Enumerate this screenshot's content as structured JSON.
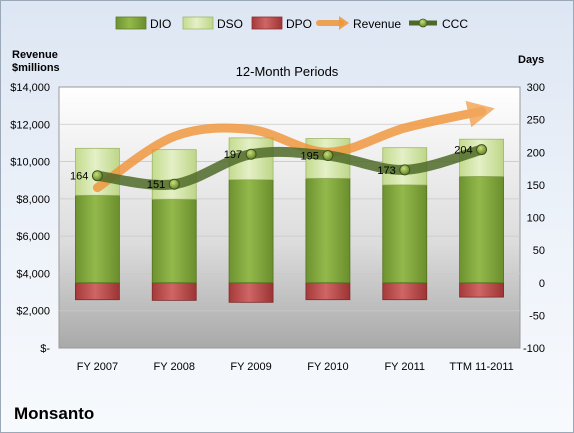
{
  "company": "Monsanto",
  "chart_data": {
    "type": "bar",
    "title": "12-Month Periods",
    "left_axis_label": [
      "Revenue",
      "$millions"
    ],
    "right_axis_label": "Days",
    "categories": [
      "FY 2007",
      "FY 2008",
      "FY 2009",
      "FY 2010",
      "FY 2011",
      "TTM 11-2011"
    ],
    "left_ticks": [
      "$14,000",
      "$12,000",
      "$10,000",
      "$8,000",
      "$6,000",
      "$4,000",
      "$2,000",
      "$-"
    ],
    "right_ticks": [
      "300",
      "250",
      "200",
      "150",
      "100",
      "50",
      "0",
      "-50",
      "-100"
    ],
    "left_range": [
      0,
      14000
    ],
    "right_range": [
      -100,
      300
    ],
    "legend": [
      "DIO",
      "DSO",
      "DPO",
      "Revenue",
      "CCC"
    ],
    "legend_position": "top",
    "series": [
      {
        "name": "DIO",
        "type": "stacked-bar",
        "axis": "right",
        "values": [
          134,
          128,
          158,
          160,
          150,
          163
        ],
        "color": "#7fa33a"
      },
      {
        "name": "DSO",
        "type": "stacked-bar",
        "axis": "right",
        "values": [
          72,
          76,
          64,
          61,
          57,
          57
        ],
        "color": "#cfe3a0"
      },
      {
        "name": "DPO",
        "type": "bar",
        "axis": "right",
        "values": [
          -26,
          -27,
          -30,
          -26,
          -26,
          -22
        ],
        "color": "#b84a4a"
      },
      {
        "name": "Revenue",
        "type": "line",
        "axis": "left",
        "values": [
          8600,
          11350,
          11720,
          10500,
          11800,
          12700
        ],
        "color": "#f0953a"
      },
      {
        "name": "CCC",
        "type": "line",
        "axis": "right",
        "values": [
          164,
          151,
          197,
          195,
          173,
          204
        ],
        "color": "#4f6a28"
      }
    ],
    "ccc_labels": [
      "164",
      "151",
      "197",
      "195",
      "173",
      "204"
    ]
  }
}
